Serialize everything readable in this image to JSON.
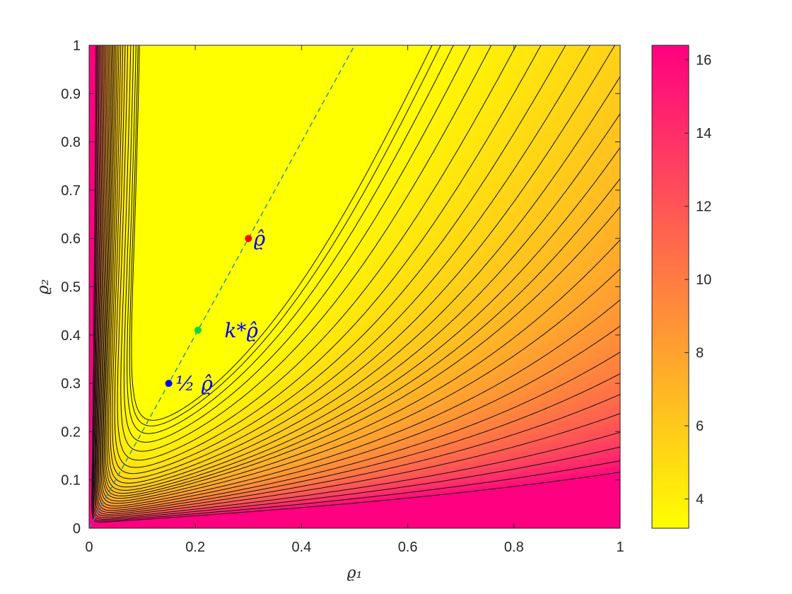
{
  "chart_data": {
    "type": "contourf",
    "xlabel": "ϱ₁",
    "ylabel": "ϱ₂",
    "xlim": [
      0,
      1
    ],
    "ylim": [
      0,
      1
    ],
    "xticks": [
      0,
      0.2,
      0.4,
      0.6,
      0.8,
      1
    ],
    "xtick_labels": [
      "0",
      "0.2",
      "0.4",
      "0.6",
      "0.8",
      "1"
    ],
    "yticks": [
      0,
      0.1,
      0.2,
      0.3,
      0.4,
      0.5,
      0.6,
      0.7,
      0.8,
      0.9,
      1
    ],
    "ytick_labels": [
      "0",
      "0.1",
      "0.2",
      "0.3",
      "0.4",
      "0.5",
      "0.6",
      "0.7",
      "0.8",
      "0.9",
      "1"
    ],
    "colorbar": {
      "min": 3.2,
      "max": 16.4,
      "ticks": [
        4,
        6,
        8,
        10,
        12,
        14,
        16
      ],
      "tick_labels": [
        "4",
        "6",
        "8",
        "10",
        "12",
        "14",
        "16"
      ],
      "colors": [
        "#ffff00",
        "#ff0080"
      ]
    },
    "line": {
      "style": "dashed",
      "color": "#1f8fb4",
      "slope": 2,
      "x": [
        0,
        0.5
      ],
      "y": [
        0,
        1
      ]
    },
    "points": [
      {
        "label": "ϱ̂",
        "x": 0.3,
        "y": 0.6,
        "color": "#ff0000"
      },
      {
        "label": "k*ϱ̂",
        "x": 0.205,
        "y": 0.41,
        "color": "#00dd44"
      },
      {
        "label": "½ ϱ̂",
        "x": 0.15,
        "y": 0.3,
        "color": "#0000ff"
      }
    ],
    "annotations": [
      {
        "text": "ϱ̂",
        "x": 0.31,
        "y": 0.6,
        "color": "#0000ff"
      },
      {
        "text": "k*ϱ̂",
        "x": 0.255,
        "y": 0.41,
        "color": "#0000ff"
      },
      {
        "text": "½ ϱ̂",
        "x": 0.163,
        "y": 0.3,
        "color": "#0000ff"
      }
    ],
    "contour_levels": [
      3.3,
      3.4,
      3.55,
      3.75,
      4.0,
      4.3,
      4.6,
      4.9,
      5.2,
      5.5,
      5.8,
      6.1,
      6.4,
      6.7,
      7.0,
      7.4,
      7.8,
      8.3,
      8.8,
      9.4,
      10.0,
      10.7,
      11.5,
      12.5,
      13.5,
      14.7,
      16.0
    ],
    "grid": false
  }
}
